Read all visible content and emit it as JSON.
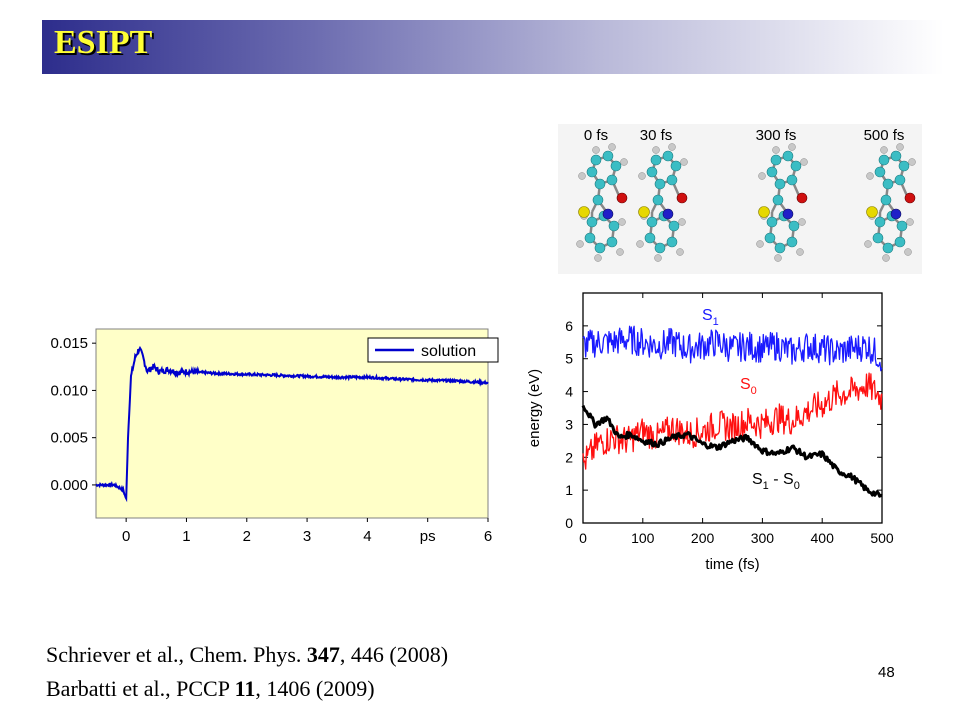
{
  "slide": {
    "title": "ESIPT",
    "page_number": "48",
    "references": [
      {
        "before": "Schriever et al., Chem. Phys. ",
        "bold": "347",
        "after": ", 446 (2008)"
      },
      {
        "before": "Barbatti et al., PCCP ",
        "bold": "11",
        "after": ", 1406 (2009)"
      }
    ]
  },
  "snapshots": [
    "0 fs",
    "30 fs",
    "300 fs",
    "500 fs"
  ],
  "colors": {
    "title_text": "#ffff33",
    "chart1_bg": "#ffffc8",
    "chart1_line": "#0000cc",
    "s1": "#1a1aff",
    "s0": "#ff1010",
    "gap": "#000000",
    "carbon": "#3bbdc4",
    "hydrogen": "#c8c8c8",
    "sulfur": "#e6d800",
    "nitrogen": "#2020c8",
    "oxygen": "#d01010"
  },
  "chart_data": [
    {
      "type": "line",
      "xlim": [
        -0.5,
        6
      ],
      "ylim": [
        -0.0035,
        0.0165
      ],
      "x_ticks": [
        "0",
        "1",
        "2",
        "3",
        "4",
        "ps",
        "6"
      ],
      "y_ticks": [
        "0.015",
        "0.010",
        "0.005",
        "0.000"
      ],
      "grid": false,
      "legend_position": "top-right",
      "series": [
        {
          "name": "solution",
          "x": [
            -0.5,
            -0.2,
            -0.05,
            0.0,
            0.03,
            0.08,
            0.15,
            0.22,
            0.28,
            0.35,
            0.45,
            0.55,
            0.7,
            0.85,
            1.0,
            1.5,
            2.0,
            2.5,
            3.0,
            3.5,
            4.0,
            4.5,
            5.0,
            5.5,
            6.0
          ],
          "y": [
            0.0,
            0.0,
            -0.0005,
            -0.0015,
            0.005,
            0.0115,
            0.0135,
            0.0145,
            0.0135,
            0.012,
            0.0125,
            0.012,
            0.0122,
            0.0119,
            0.012,
            0.0118,
            0.0117,
            0.0116,
            0.0115,
            0.0114,
            0.0114,
            0.0112,
            0.0111,
            0.011,
            0.0108
          ]
        }
      ]
    },
    {
      "type": "line",
      "xlabel": "time (fs)",
      "ylabel": "energy (eV)",
      "xlim": [
        0,
        500
      ],
      "ylim": [
        0,
        7
      ],
      "x_ticks": [
        "0",
        "100",
        "200",
        "300",
        "400",
        "500"
      ],
      "y_ticks": [
        "0",
        "1",
        "2",
        "3",
        "4",
        "5",
        "6"
      ],
      "series_labels": [
        {
          "main": "S",
          "sub": "1",
          "rest": ""
        },
        {
          "main": "S",
          "sub": "0",
          "rest": ""
        },
        {
          "main": "S",
          "sub": "1",
          "rest": " - S",
          "sub2": "0"
        }
      ],
      "series": [
        {
          "x": [
            0,
            25,
            50,
            75,
            100,
            125,
            150,
            175,
            200,
            225,
            250,
            275,
            300,
            325,
            350,
            375,
            400,
            425,
            450,
            475,
            500
          ],
          "y": [
            5.4,
            5.5,
            5.5,
            5.6,
            5.5,
            5.4,
            5.5,
            5.3,
            5.4,
            5.5,
            5.3,
            5.4,
            5.3,
            5.4,
            5.2,
            5.4,
            5.3,
            5.2,
            5.3,
            5.4,
            5.0
          ]
        },
        {
          "x": [
            0,
            25,
            50,
            75,
            100,
            125,
            150,
            175,
            200,
            225,
            250,
            275,
            300,
            325,
            350,
            375,
            400,
            425,
            450,
            475,
            500
          ],
          "y": [
            1.8,
            2.4,
            2.6,
            2.5,
            2.8,
            2.6,
            2.9,
            2.7,
            2.8,
            3.0,
            2.9,
            3.1,
            3.0,
            3.2,
            3.1,
            3.4,
            3.6,
            3.9,
            4.0,
            4.2,
            3.8
          ]
        },
        {
          "x": [
            0,
            20,
            40,
            60,
            80,
            100,
            125,
            150,
            175,
            200,
            225,
            250,
            275,
            300,
            325,
            350,
            375,
            400,
            425,
            450,
            475,
            500
          ],
          "y": [
            3.6,
            3.0,
            3.2,
            2.6,
            2.7,
            2.5,
            2.4,
            2.6,
            2.7,
            2.4,
            2.3,
            2.5,
            2.6,
            2.2,
            2.1,
            2.3,
            2.0,
            2.1,
            1.6,
            1.4,
            1.0,
            0.8
          ]
        }
      ]
    }
  ]
}
